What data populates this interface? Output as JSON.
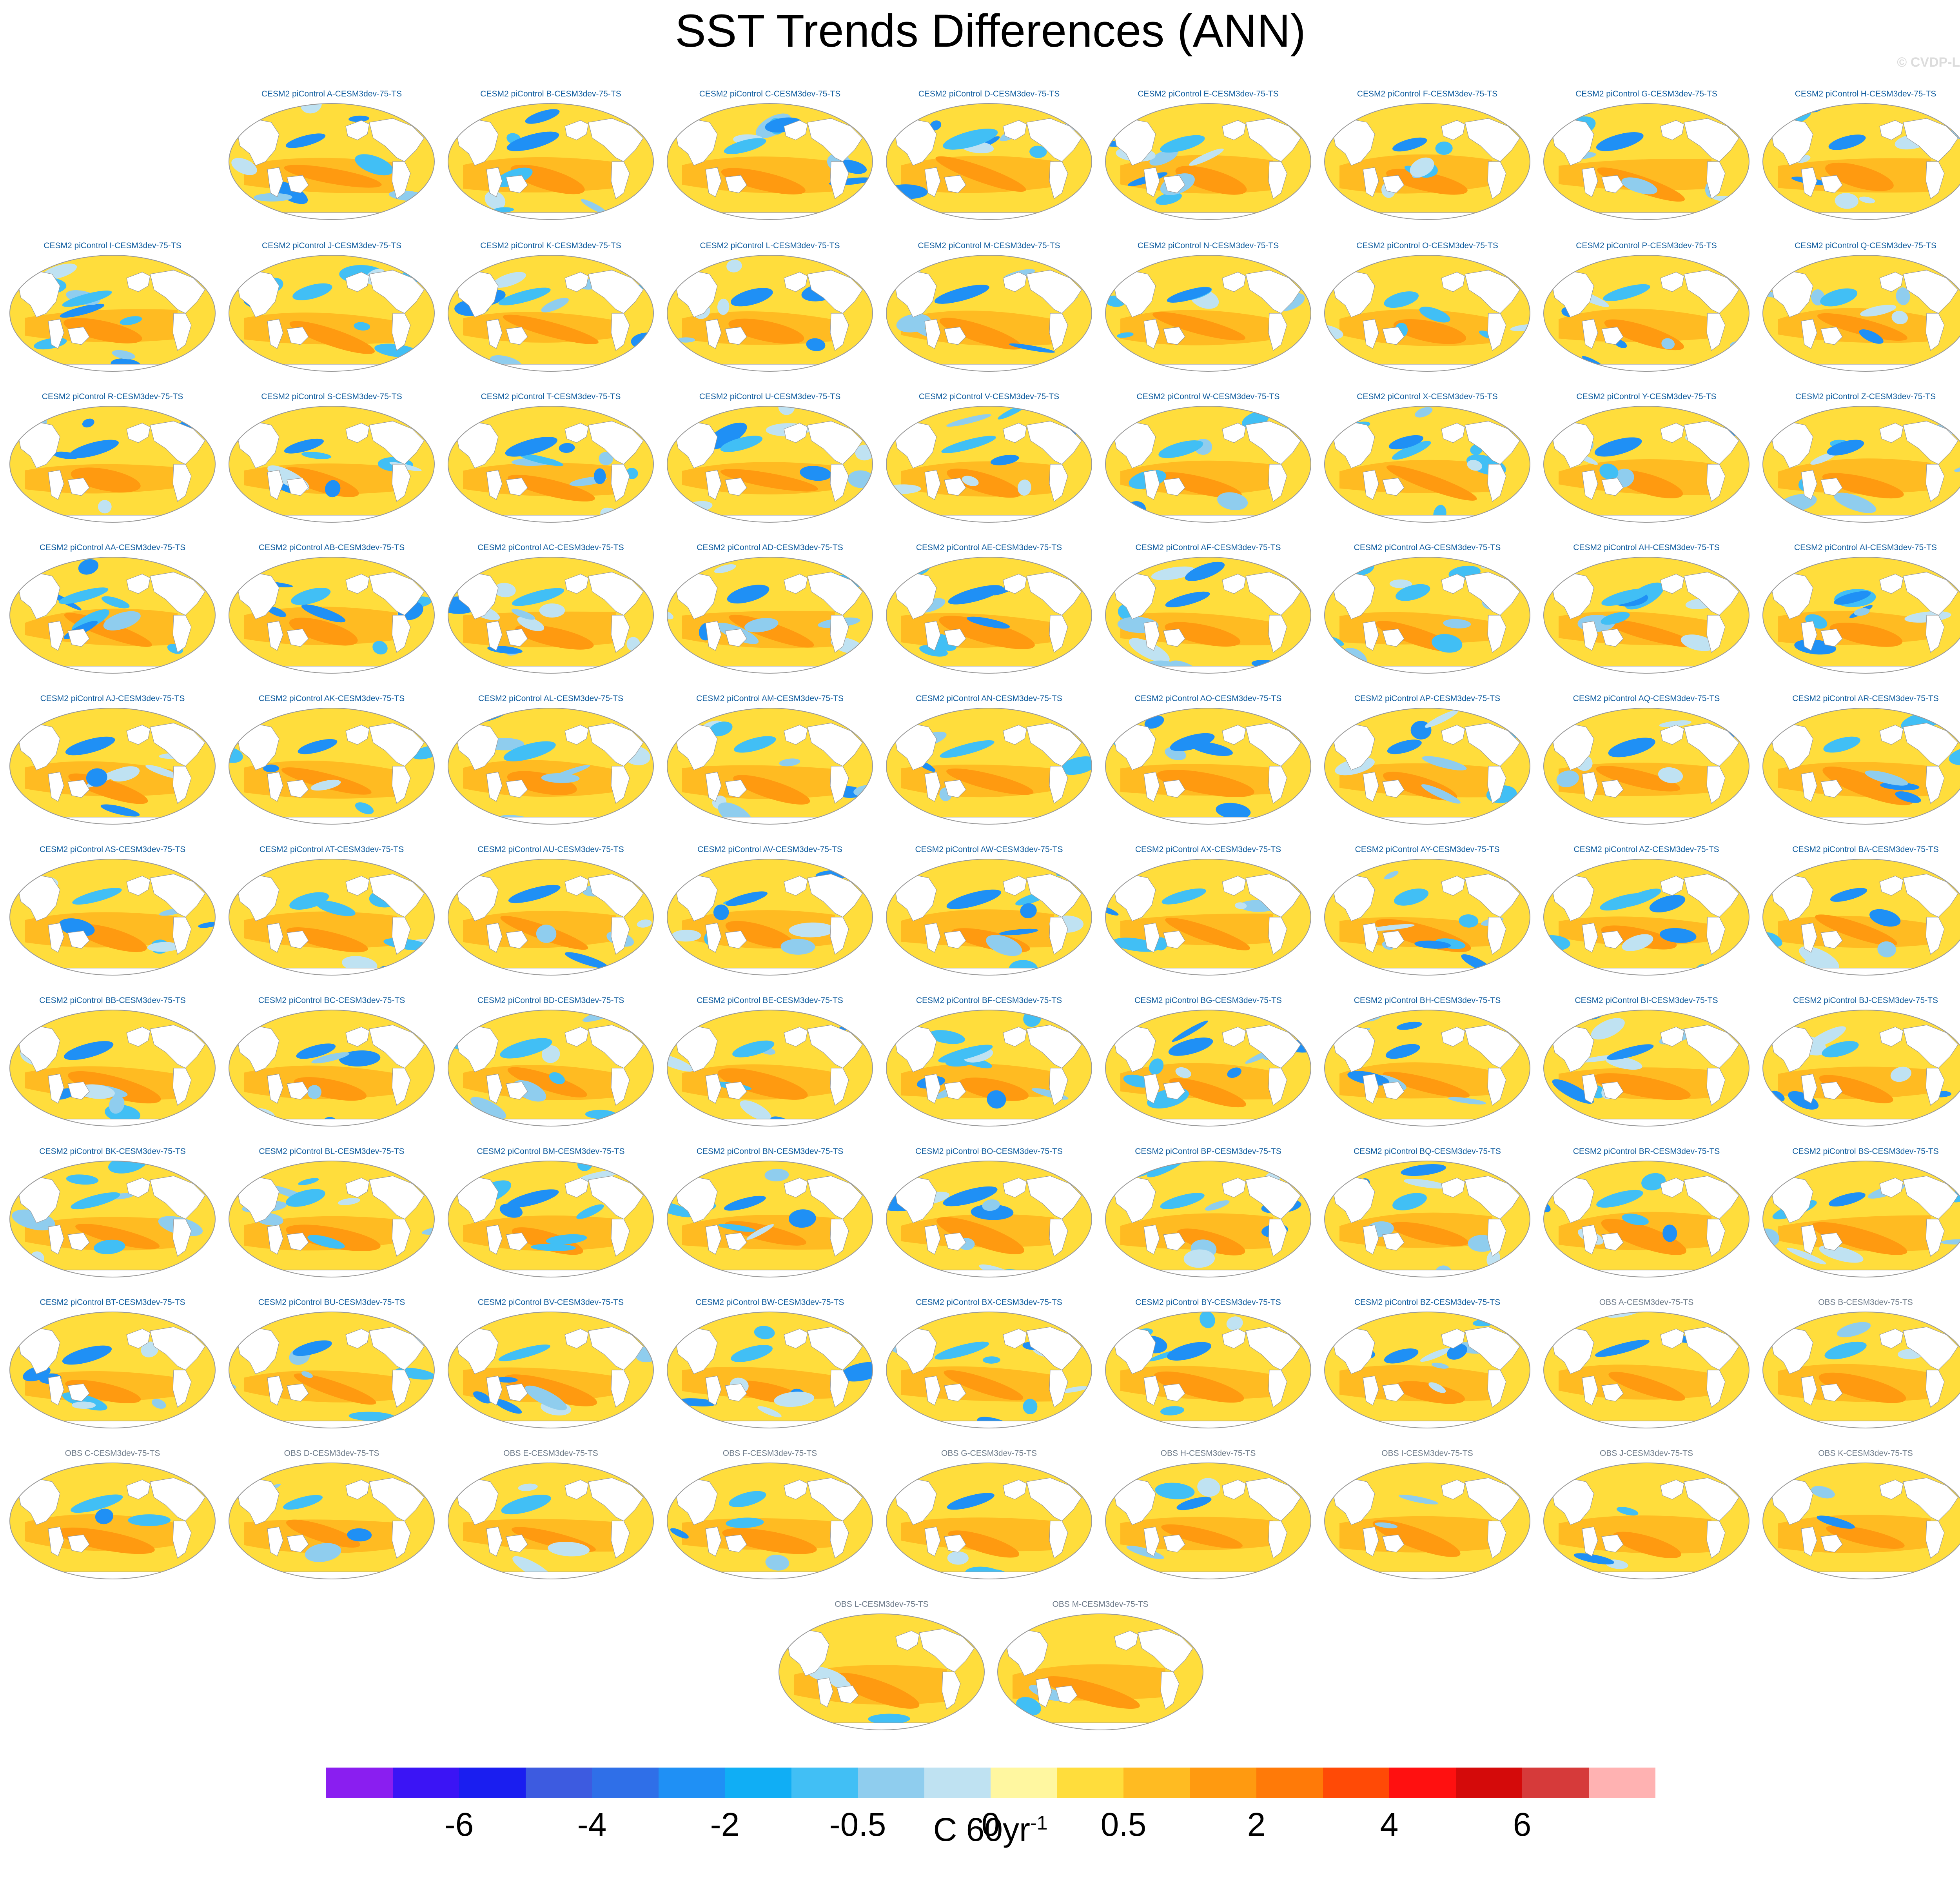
{
  "title": "SST Trends Differences (ANN)",
  "watermark": "© CVDP-LE",
  "panels": [
    {
      "label": "CESM2 piControl A-CESM3dev-75-TS",
      "kind": "control"
    },
    {
      "label": "CESM2 piControl B-CESM3dev-75-TS",
      "kind": "control"
    },
    {
      "label": "CESM2 piControl C-CESM3dev-75-TS",
      "kind": "control"
    },
    {
      "label": "CESM2 piControl D-CESM3dev-75-TS",
      "kind": "control"
    },
    {
      "label": "CESM2 piControl E-CESM3dev-75-TS",
      "kind": "control"
    },
    {
      "label": "CESM2 piControl F-CESM3dev-75-TS",
      "kind": "control"
    },
    {
      "label": "CESM2 piControl G-CESM3dev-75-TS",
      "kind": "control"
    },
    {
      "label": "CESM2 piControl H-CESM3dev-75-TS",
      "kind": "control"
    },
    {
      "label": "CESM2 piControl I-CESM3dev-75-TS",
      "kind": "control"
    },
    {
      "label": "CESM2 piControl J-CESM3dev-75-TS",
      "kind": "control"
    },
    {
      "label": "CESM2 piControl K-CESM3dev-75-TS",
      "kind": "control"
    },
    {
      "label": "CESM2 piControl L-CESM3dev-75-TS",
      "kind": "control"
    },
    {
      "label": "CESM2 piControl M-CESM3dev-75-TS",
      "kind": "control"
    },
    {
      "label": "CESM2 piControl N-CESM3dev-75-TS",
      "kind": "control"
    },
    {
      "label": "CESM2 piControl O-CESM3dev-75-TS",
      "kind": "control"
    },
    {
      "label": "CESM2 piControl P-CESM3dev-75-TS",
      "kind": "control"
    },
    {
      "label": "CESM2 piControl Q-CESM3dev-75-TS",
      "kind": "control"
    },
    {
      "label": "CESM2 piControl R-CESM3dev-75-TS",
      "kind": "control"
    },
    {
      "label": "CESM2 piControl S-CESM3dev-75-TS",
      "kind": "control"
    },
    {
      "label": "CESM2 piControl T-CESM3dev-75-TS",
      "kind": "control"
    },
    {
      "label": "CESM2 piControl U-CESM3dev-75-TS",
      "kind": "control"
    },
    {
      "label": "CESM2 piControl V-CESM3dev-75-TS",
      "kind": "control"
    },
    {
      "label": "CESM2 piControl W-CESM3dev-75-TS",
      "kind": "control"
    },
    {
      "label": "CESM2 piControl X-CESM3dev-75-TS",
      "kind": "control"
    },
    {
      "label": "CESM2 piControl Y-CESM3dev-75-TS",
      "kind": "control"
    },
    {
      "label": "CESM2 piControl Z-CESM3dev-75-TS",
      "kind": "control"
    },
    {
      "label": "CESM2 piControl AA-CESM3dev-75-TS",
      "kind": "control"
    },
    {
      "label": "CESM2 piControl AB-CESM3dev-75-TS",
      "kind": "control"
    },
    {
      "label": "CESM2 piControl AC-CESM3dev-75-TS",
      "kind": "control"
    },
    {
      "label": "CESM2 piControl AD-CESM3dev-75-TS",
      "kind": "control"
    },
    {
      "label": "CESM2 piControl AE-CESM3dev-75-TS",
      "kind": "control"
    },
    {
      "label": "CESM2 piControl AF-CESM3dev-75-TS",
      "kind": "control"
    },
    {
      "label": "CESM2 piControl AG-CESM3dev-75-TS",
      "kind": "control"
    },
    {
      "label": "CESM2 piControl AH-CESM3dev-75-TS",
      "kind": "control"
    },
    {
      "label": "CESM2 piControl AI-CESM3dev-75-TS",
      "kind": "control"
    },
    {
      "label": "CESM2 piControl AJ-CESM3dev-75-TS",
      "kind": "control"
    },
    {
      "label": "CESM2 piControl AK-CESM3dev-75-TS",
      "kind": "control"
    },
    {
      "label": "CESM2 piControl AL-CESM3dev-75-TS",
      "kind": "control"
    },
    {
      "label": "CESM2 piControl AM-CESM3dev-75-TS",
      "kind": "control"
    },
    {
      "label": "CESM2 piControl AN-CESM3dev-75-TS",
      "kind": "control"
    },
    {
      "label": "CESM2 piControl AO-CESM3dev-75-TS",
      "kind": "control"
    },
    {
      "label": "CESM2 piControl AP-CESM3dev-75-TS",
      "kind": "control"
    },
    {
      "label": "CESM2 piControl AQ-CESM3dev-75-TS",
      "kind": "control"
    },
    {
      "label": "CESM2 piControl AR-CESM3dev-75-TS",
      "kind": "control"
    },
    {
      "label": "CESM2 piControl AS-CESM3dev-75-TS",
      "kind": "control"
    },
    {
      "label": "CESM2 piControl AT-CESM3dev-75-TS",
      "kind": "control"
    },
    {
      "label": "CESM2 piControl AU-CESM3dev-75-TS",
      "kind": "control"
    },
    {
      "label": "CESM2 piControl AV-CESM3dev-75-TS",
      "kind": "control"
    },
    {
      "label": "CESM2 piControl AW-CESM3dev-75-TS",
      "kind": "control"
    },
    {
      "label": "CESM2 piControl AX-CESM3dev-75-TS",
      "kind": "control"
    },
    {
      "label": "CESM2 piControl AY-CESM3dev-75-TS",
      "kind": "control"
    },
    {
      "label": "CESM2 piControl AZ-CESM3dev-75-TS",
      "kind": "control"
    },
    {
      "label": "CESM2 piControl BA-CESM3dev-75-TS",
      "kind": "control"
    },
    {
      "label": "CESM2 piControl BB-CESM3dev-75-TS",
      "kind": "control"
    },
    {
      "label": "CESM2 piControl BC-CESM3dev-75-TS",
      "kind": "control"
    },
    {
      "label": "CESM2 piControl BD-CESM3dev-75-TS",
      "kind": "control"
    },
    {
      "label": "CESM2 piControl BE-CESM3dev-75-TS",
      "kind": "control"
    },
    {
      "label": "CESM2 piControl BF-CESM3dev-75-TS",
      "kind": "control"
    },
    {
      "label": "CESM2 piControl BG-CESM3dev-75-TS",
      "kind": "control"
    },
    {
      "label": "CESM2 piControl BH-CESM3dev-75-TS",
      "kind": "control"
    },
    {
      "label": "CESM2 piControl BI-CESM3dev-75-TS",
      "kind": "control"
    },
    {
      "label": "CESM2 piControl BJ-CESM3dev-75-TS",
      "kind": "control"
    },
    {
      "label": "CESM2 piControl BK-CESM3dev-75-TS",
      "kind": "control"
    },
    {
      "label": "CESM2 piControl BL-CESM3dev-75-TS",
      "kind": "control"
    },
    {
      "label": "CESM2 piControl BM-CESM3dev-75-TS",
      "kind": "control"
    },
    {
      "label": "CESM2 piControl BN-CESM3dev-75-TS",
      "kind": "control"
    },
    {
      "label": "CESM2 piControl BO-CESM3dev-75-TS",
      "kind": "control"
    },
    {
      "label": "CESM2 piControl BP-CESM3dev-75-TS",
      "kind": "control"
    },
    {
      "label": "CESM2 piControl BQ-CESM3dev-75-TS",
      "kind": "control"
    },
    {
      "label": "CESM2 piControl BR-CESM3dev-75-TS",
      "kind": "control"
    },
    {
      "label": "CESM2 piControl BS-CESM3dev-75-TS",
      "kind": "control"
    },
    {
      "label": "CESM2 piControl BT-CESM3dev-75-TS",
      "kind": "control"
    },
    {
      "label": "CESM2 piControl BU-CESM3dev-75-TS",
      "kind": "control"
    },
    {
      "label": "CESM2 piControl BV-CESM3dev-75-TS",
      "kind": "control"
    },
    {
      "label": "CESM2 piControl BW-CESM3dev-75-TS",
      "kind": "control"
    },
    {
      "label": "CESM2 piControl BX-CESM3dev-75-TS",
      "kind": "control"
    },
    {
      "label": "CESM2 piControl BY-CESM3dev-75-TS",
      "kind": "control"
    },
    {
      "label": "CESM2 piControl BZ-CESM3dev-75-TS",
      "kind": "control"
    },
    {
      "label": "OBS A-CESM3dev-75-TS",
      "kind": "obs"
    },
    {
      "label": "OBS B-CESM3dev-75-TS",
      "kind": "obs"
    },
    {
      "label": "OBS C-CESM3dev-75-TS",
      "kind": "obs"
    },
    {
      "label": "OBS D-CESM3dev-75-TS",
      "kind": "obs"
    },
    {
      "label": "OBS E-CESM3dev-75-TS",
      "kind": "obs"
    },
    {
      "label": "OBS F-CESM3dev-75-TS",
      "kind": "obs"
    },
    {
      "label": "OBS G-CESM3dev-75-TS",
      "kind": "obs"
    },
    {
      "label": "OBS H-CESM3dev-75-TS",
      "kind": "obs"
    },
    {
      "label": "OBS I-CESM3dev-75-TS",
      "kind": "obs"
    },
    {
      "label": "OBS J-CESM3dev-75-TS",
      "kind": "obs"
    },
    {
      "label": "OBS K-CESM3dev-75-TS",
      "kind": "obs"
    },
    {
      "label": "OBS L-CESM3dev-75-TS",
      "kind": "obs"
    },
    {
      "label": "OBS M-CESM3dev-75-TS",
      "kind": "obs"
    }
  ],
  "colorbar": {
    "colors": [
      "#8a1ef0",
      "#3b14f5",
      "#1a1ef0",
      "#3d5be0",
      "#2f6fe8",
      "#1f90f5",
      "#10aef5",
      "#41bff5",
      "#8fcdee",
      "#bfe2f2",
      "#fff7a0",
      "#ffdd3c",
      "#ffbb22",
      "#ff9a10",
      "#ff7a08",
      "#ff4a06",
      "#ff1010",
      "#d40a0a",
      "#d63a3a",
      "#ffb2b2"
    ],
    "labels": [
      {
        "text": "-6",
        "boundary": 2
      },
      {
        "text": "-4",
        "boundary": 4
      },
      {
        "text": "-2",
        "boundary": 6
      },
      {
        "text": "-0.5",
        "boundary": 8
      },
      {
        "text": "0",
        "boundary": 10
      },
      {
        "text": "0.5",
        "boundary": 12
      },
      {
        "text": "2",
        "boundary": 14
      },
      {
        "text": "4",
        "boundary": 16
      },
      {
        "text": "6",
        "boundary": 18
      }
    ],
    "units_base": "C 60yr",
    "units_exp": "-1"
  },
  "map_style": {
    "land_color": "#ffffff",
    "outline_color": "#999999",
    "warm_colors": [
      "#ffdd3c",
      "#ffbb22",
      "#ff9a10",
      "#ff7a08"
    ],
    "cool_colors": [
      "#bfe2f2",
      "#8fcdee",
      "#41bff5",
      "#1f90f5"
    ]
  }
}
